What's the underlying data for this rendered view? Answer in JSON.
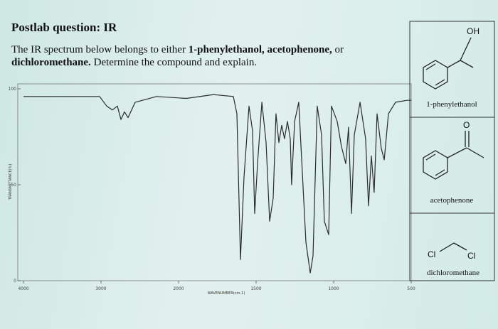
{
  "header": {
    "title": "Postlab question: IR",
    "question": [
      "The IR spectrum below belongs to either ",
      "1-phenylethanol, acetophenone,",
      " or",
      "dichloromethane.",
      " Determine the compound and explain."
    ]
  },
  "compounds": [
    {
      "name": "1-phenylethanol",
      "atoms": [
        "OH"
      ]
    },
    {
      "name": "acetophenone",
      "atoms": [
        "O"
      ]
    },
    {
      "name": "dichloromethane",
      "atoms": [
        "Cl",
        "Cl"
      ]
    }
  ],
  "chart_data": {
    "type": "line",
    "x_label": "WAVENUMBER(cm-1)",
    "y_label": "TRANSMITTANCE(%)",
    "xlim": [
      4000,
      500
    ],
    "xticks": [
      4000,
      3000,
      2000,
      1500,
      1000,
      500
    ],
    "ylim": [
      0,
      100
    ],
    "yticks": [
      0,
      50,
      100
    ],
    "grid": false,
    "series": [
      {
        "color": "#2b2b2b",
        "x": [
          4000,
          3018,
          2927,
          2853,
          2789,
          2743,
          2697,
          2651,
          2560,
          2284,
          1950,
          1775,
          1647,
          1624,
          1601,
          1578,
          1546,
          1523,
          1509,
          1491,
          1463,
          1436,
          1413,
          1390,
          1372,
          1353,
          1335,
          1317,
          1298,
          1280,
          1271,
          1252,
          1225,
          1179,
          1151,
          1133,
          1106,
          1078,
          1060,
          1032,
          1014,
          977,
          950,
          922,
          904,
          885,
          867,
          830,
          794,
          775,
          757,
          739,
          720,
          693,
          674,
          647,
          601,
          528,
          500
        ],
        "values": [
          96,
          96,
          91,
          89,
          91,
          84,
          88,
          85,
          93,
          96,
          95,
          97,
          96,
          87,
          11,
          54,
          91,
          78,
          35,
          61,
          93,
          72,
          31,
          43,
          87,
          72,
          81,
          74,
          83,
          74,
          50,
          83,
          93,
          20,
          4,
          13,
          91,
          76,
          31,
          24,
          91,
          83,
          70,
          61,
          80,
          35,
          76,
          93,
          74,
          39,
          65,
          46,
          87,
          69,
          63,
          87,
          93,
          94,
          94
        ]
      }
    ]
  }
}
